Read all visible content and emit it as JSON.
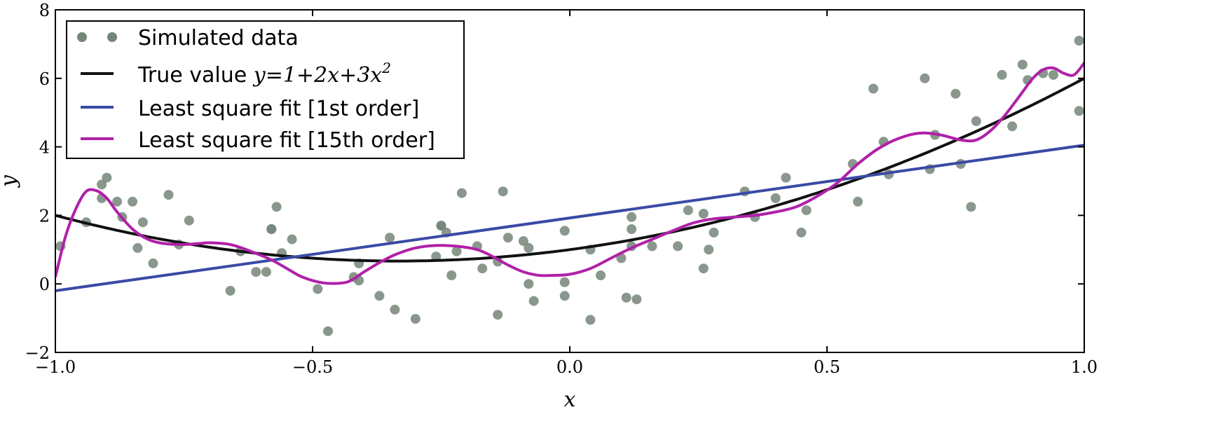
{
  "chart_data": {
    "type": "scatter",
    "xlabel": "x",
    "ylabel": "y",
    "xlim": [
      -1.0,
      1.0
    ],
    "ylim": [
      -2,
      8
    ],
    "x_ticks": [
      -1.0,
      -0.5,
      0.0,
      0.5,
      1.0
    ],
    "x_tick_labels": [
      "−1.0",
      "−0.5",
      "0.0",
      "0.5",
      "1.0"
    ],
    "y_ticks": [
      -2,
      0,
      2,
      4,
      6,
      8
    ],
    "y_tick_labels": [
      "−2",
      "0",
      "2",
      "4",
      "6",
      "8"
    ],
    "grid": false,
    "legend_position": "upper-left",
    "series": [
      {
        "name": "Simulated data",
        "kind": "scatter",
        "color": "#748579",
        "points": [
          [
            -0.99,
            1.1
          ],
          [
            -0.94,
            1.8
          ],
          [
            -0.91,
            2.9
          ],
          [
            -0.91,
            2.5
          ],
          [
            -0.9,
            3.1
          ],
          [
            -0.88,
            2.4
          ],
          [
            -0.87,
            1.95
          ],
          [
            -0.85,
            2.4
          ],
          [
            -0.84,
            1.05
          ],
          [
            -0.83,
            1.8
          ],
          [
            -0.81,
            0.6
          ],
          [
            -0.78,
            2.6
          ],
          [
            -0.76,
            1.15
          ],
          [
            -0.74,
            1.85
          ],
          [
            -0.66,
            -0.2
          ],
          [
            -0.64,
            0.95
          ],
          [
            -0.61,
            0.35
          ],
          [
            -0.59,
            0.35
          ],
          [
            -0.58,
            1.6
          ],
          [
            -0.58,
            1.6
          ],
          [
            -0.57,
            2.25
          ],
          [
            -0.56,
            0.9
          ],
          [
            -0.54,
            1.3
          ],
          [
            -0.49,
            -0.15
          ],
          [
            -0.47,
            -1.38
          ],
          [
            -0.42,
            0.2
          ],
          [
            -0.41,
            0.6
          ],
          [
            -0.41,
            0.1
          ],
          [
            -0.37,
            -0.35
          ],
          [
            -0.35,
            1.35
          ],
          [
            -0.34,
            -0.75
          ],
          [
            -0.3,
            -1.02
          ],
          [
            -0.26,
            0.8
          ],
          [
            -0.25,
            1.7
          ],
          [
            -0.25,
            1.7
          ],
          [
            -0.24,
            1.5
          ],
          [
            -0.23,
            0.25
          ],
          [
            -0.22,
            0.95
          ],
          [
            -0.21,
            2.65
          ],
          [
            -0.18,
            1.1
          ],
          [
            -0.17,
            0.45
          ],
          [
            -0.14,
            0.65
          ],
          [
            -0.14,
            -0.9
          ],
          [
            -0.13,
            2.7
          ],
          [
            -0.12,
            1.35
          ],
          [
            -0.09,
            1.25
          ],
          [
            -0.08,
            1.05
          ],
          [
            -0.08,
            0.0
          ],
          [
            -0.07,
            -0.5
          ],
          [
            -0.01,
            1.55
          ],
          [
            -0.01,
            0.05
          ],
          [
            -0.01,
            -0.35
          ],
          [
            0.04,
            1.0
          ],
          [
            0.04,
            -1.05
          ],
          [
            0.06,
            0.25
          ],
          [
            0.1,
            0.75
          ],
          [
            0.11,
            -0.4
          ],
          [
            0.12,
            1.1
          ],
          [
            0.12,
            1.6
          ],
          [
            0.12,
            1.95
          ],
          [
            0.13,
            -0.45
          ],
          [
            0.16,
            1.1
          ],
          [
            0.21,
            1.1
          ],
          [
            0.23,
            2.15
          ],
          [
            0.26,
            2.05
          ],
          [
            0.26,
            0.45
          ],
          [
            0.27,
            1.0
          ],
          [
            0.28,
            1.5
          ],
          [
            0.34,
            2.7
          ],
          [
            0.36,
            1.95
          ],
          [
            0.4,
            2.5
          ],
          [
            0.42,
            3.1
          ],
          [
            0.45,
            1.5
          ],
          [
            0.46,
            2.15
          ],
          [
            0.55,
            3.5
          ],
          [
            0.56,
            2.4
          ],
          [
            0.59,
            5.7
          ],
          [
            0.61,
            4.15
          ],
          [
            0.62,
            3.2
          ],
          [
            0.69,
            6.0
          ],
          [
            0.7,
            3.35
          ],
          [
            0.71,
            4.35
          ],
          [
            0.75,
            5.55
          ],
          [
            0.76,
            3.5
          ],
          [
            0.78,
            2.25
          ],
          [
            0.79,
            4.75
          ],
          [
            0.84,
            6.1
          ],
          [
            0.86,
            4.6
          ],
          [
            0.88,
            6.4
          ],
          [
            0.89,
            5.95
          ],
          [
            0.92,
            6.15
          ],
          [
            0.94,
            6.1
          ],
          [
            0.99,
            7.1
          ],
          [
            0.99,
            5.05
          ]
        ]
      },
      {
        "name": "True value",
        "kind": "line",
        "color": "#111111",
        "formula": "y = 1 + 2x + 3x^2"
      },
      {
        "name": "Least square fit [1st order]",
        "kind": "line",
        "color": "#3a4aa5",
        "x": [
          -1.0,
          1.0
        ],
        "y": [
          -0.2,
          4.05
        ]
      },
      {
        "name": "Least square fit [15th order]",
        "kind": "line",
        "color": "#b020a8",
        "x": [
          -1.0,
          -0.98,
          -0.96,
          -0.94,
          -0.92,
          -0.9,
          -0.88,
          -0.85,
          -0.82,
          -0.79,
          -0.75,
          -0.72,
          -0.7,
          -0.66,
          -0.62,
          -0.58,
          -0.55,
          -0.52,
          -0.48,
          -0.44,
          -0.42,
          -0.4,
          -0.37,
          -0.34,
          -0.3,
          -0.26,
          -0.22,
          -0.18,
          -0.15,
          -0.12,
          -0.09,
          -0.06,
          -0.03,
          0.0,
          0.04,
          0.08,
          0.12,
          0.16,
          0.2,
          0.24,
          0.28,
          0.32,
          0.36,
          0.4,
          0.44,
          0.48,
          0.52,
          0.56,
          0.6,
          0.64,
          0.68,
          0.72,
          0.76,
          0.79,
          0.82,
          0.85,
          0.88,
          0.9,
          0.92,
          0.94,
          0.96,
          0.98,
          1.0
        ],
        "y": [
          0.2,
          1.4,
          2.2,
          2.7,
          2.72,
          2.5,
          2.1,
          1.6,
          1.3,
          1.18,
          1.15,
          1.18,
          1.2,
          1.15,
          0.95,
          0.7,
          0.45,
          0.2,
          0.03,
          0.03,
          0.15,
          0.35,
          0.62,
          0.85,
          1.05,
          1.12,
          1.1,
          1.0,
          0.8,
          0.55,
          0.35,
          0.25,
          0.25,
          0.28,
          0.45,
          0.75,
          1.05,
          1.3,
          1.55,
          1.78,
          1.9,
          1.95,
          2.0,
          2.1,
          2.25,
          2.55,
          2.95,
          3.5,
          3.95,
          4.25,
          4.4,
          4.35,
          4.2,
          4.2,
          4.5,
          5.0,
          5.6,
          6.0,
          6.25,
          6.3,
          6.15,
          6.1,
          6.45
        ]
      }
    ],
    "legend": {
      "entries": [
        {
          "label": "Simulated data",
          "marker": "dot"
        },
        {
          "label_prefix": "True value ",
          "math": "y=1+2x+3x",
          "math_sup": "2",
          "marker": "line"
        },
        {
          "label": "Least square fit [1st order]",
          "marker": "line"
        },
        {
          "label": "Least square fit [15th order]",
          "marker": "line"
        }
      ]
    }
  }
}
